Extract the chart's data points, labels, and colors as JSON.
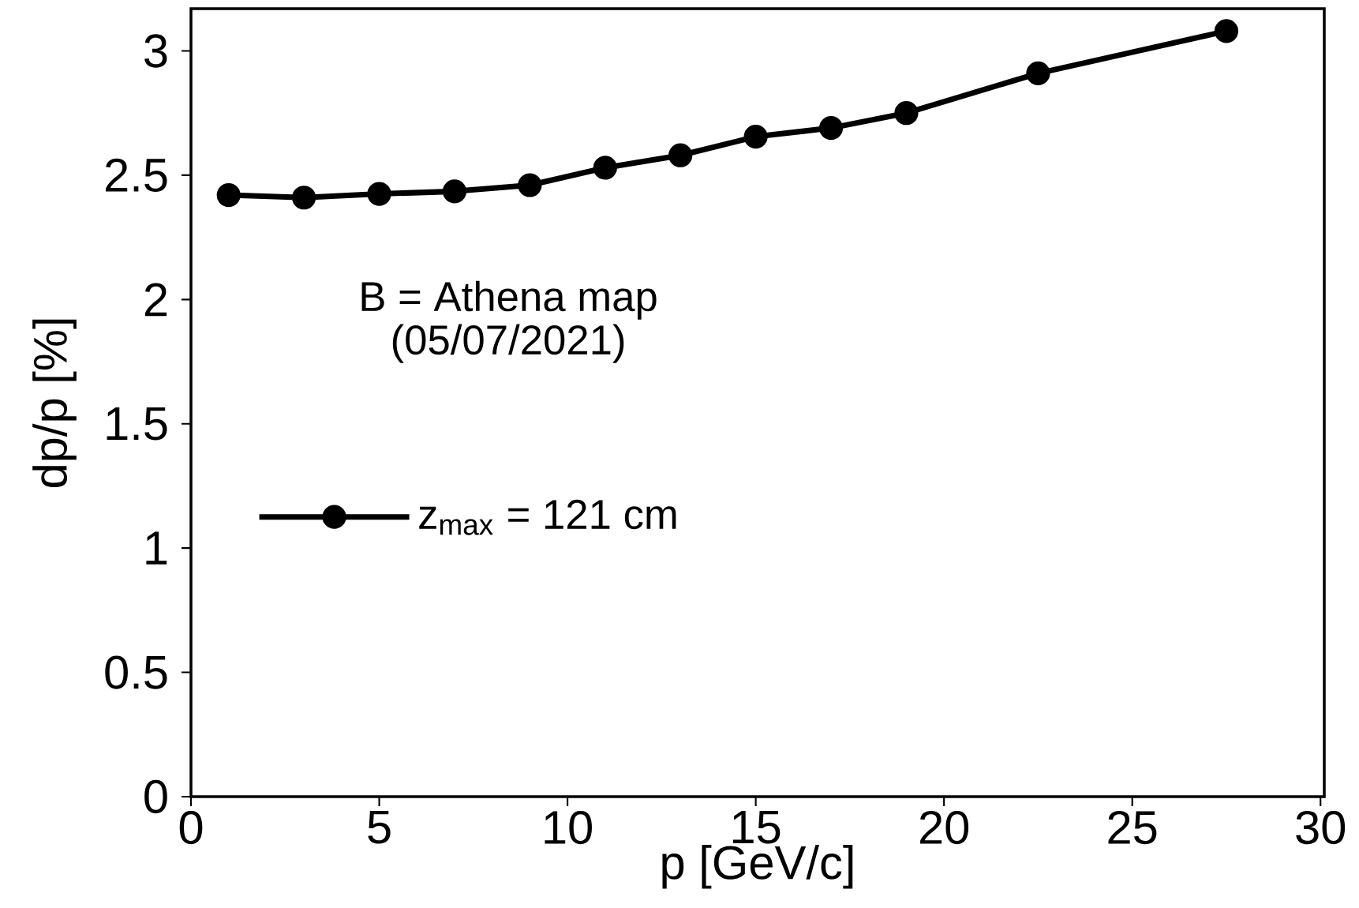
{
  "chart_data": {
    "type": "line",
    "xlabel": "p [GeV/c]",
    "ylabel": "dp/p [%]",
    "annotations": [
      "B = Athena map",
      "(05/07/2021)"
    ],
    "x": [
      1,
      3,
      5,
      7,
      9,
      11,
      13,
      15,
      17,
      19,
      22.5,
      27.5
    ],
    "series": [
      {
        "name": "z$_{max}$ = 121 cm",
        "color": "#000000",
        "values": [
          2.42,
          2.41,
          2.425,
          2.435,
          2.46,
          2.53,
          2.58,
          2.655,
          2.69,
          2.75,
          2.91,
          3.08
        ]
      }
    ],
    "xlim": [
      0,
      30.1
    ],
    "ylim": [
      0,
      3.17
    ],
    "xticks": [
      0,
      5,
      10,
      15,
      20,
      25,
      30
    ],
    "yticks": [
      0,
      0.5,
      1,
      1.5,
      2,
      2.5,
      3
    ],
    "grid": false,
    "legend": "left",
    "marker": "circle",
    "line_style": "solid"
  }
}
